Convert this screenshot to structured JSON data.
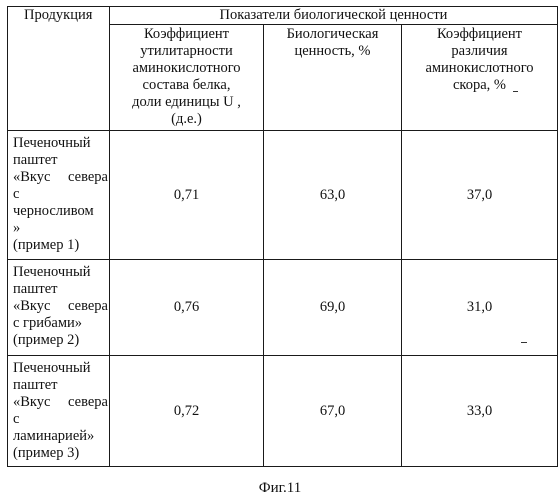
{
  "table": {
    "header": {
      "product": "Продукция",
      "group": "Показатели биологической ценности",
      "col_utility": [
        "Коэффициент",
        "утилитарности",
        "аминокислотного",
        "состава белка,",
        "доли единицы U ,",
        "(д.е.)"
      ],
      "col_value": [
        "Биологическая",
        "ценность, %"
      ],
      "col_diff": [
        "Коэффициент",
        "различия",
        "аминокислотного",
        "скора, %"
      ]
    },
    "rows": [
      {
        "product": [
          "Печеночный",
          "паштет",
          "«Вкус севера",
          "с",
          "черносливом",
          "»",
          "(пример 1)"
        ],
        "utility": "0,71",
        "value": "63,0",
        "diff": "37,0"
      },
      {
        "product": [
          "Печеночный",
          "паштет",
          "«Вкус севера",
          "с грибами»",
          "(пример 2)"
        ],
        "utility": "0,76",
        "value": "69,0",
        "diff": "31,0"
      },
      {
        "product": [
          "Печеночный",
          "паштет",
          "«Вкус севера",
          "с",
          "ламинарией»",
          "(пример 3)"
        ],
        "utility": "0,72",
        "value": "67,0",
        "diff": "33,0"
      }
    ]
  },
  "caption": "Фиг.11"
}
